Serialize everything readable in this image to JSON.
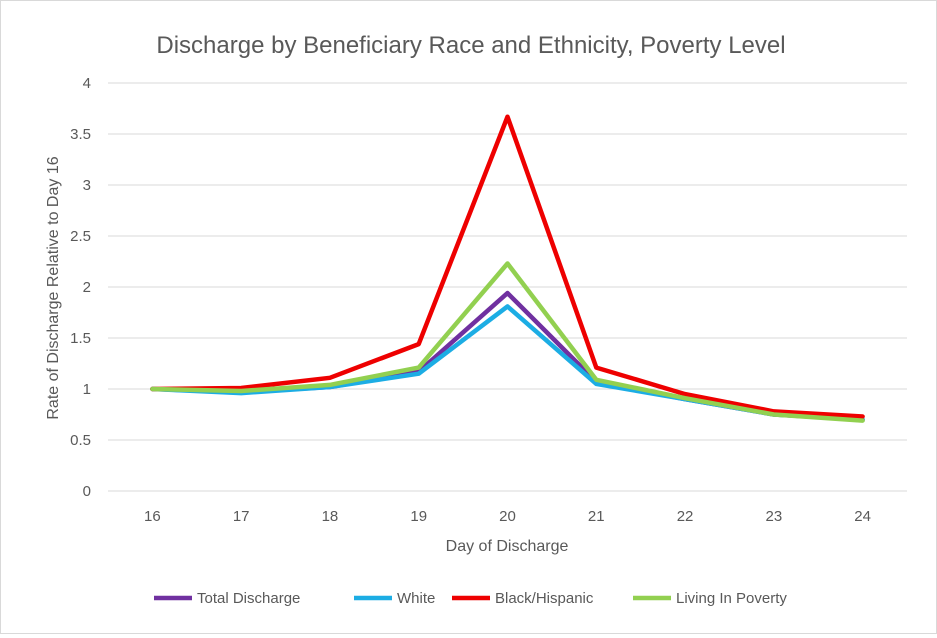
{
  "chart_data": {
    "type": "line",
    "title": "Discharge by Beneficiary Race and Ethnicity, Poverty Level",
    "xlabel": "Day of Discharge",
    "ylabel": "Rate of Discharge Relative to Day 16",
    "categories": [
      "16",
      "17",
      "18",
      "19",
      "20",
      "21",
      "22",
      "23",
      "24"
    ],
    "ylim": [
      0,
      4
    ],
    "yticks": [
      "0",
      "0.5",
      "1",
      "1.5",
      "2",
      "2.5",
      "3",
      "3.5",
      "4"
    ],
    "grid": true,
    "legend_position": "bottom",
    "series": [
      {
        "name": "Total Discharge",
        "color": "#7030a0",
        "values": [
          1.0,
          0.97,
          1.02,
          1.17,
          1.94,
          1.07,
          0.9,
          0.75,
          0.7
        ]
      },
      {
        "name": "White",
        "color": "#1cade4",
        "values": [
          1.0,
          0.96,
          1.02,
          1.15,
          1.81,
          1.05,
          0.9,
          0.75,
          0.7
        ]
      },
      {
        "name": "Black/Hispanic",
        "color": "#ee0000",
        "values": [
          1.0,
          1.01,
          1.11,
          1.44,
          3.67,
          1.21,
          0.95,
          0.78,
          0.73
        ]
      },
      {
        "name": "Living In Poverty",
        "color": "#92d050",
        "values": [
          1.0,
          0.98,
          1.04,
          1.21,
          2.23,
          1.09,
          0.91,
          0.75,
          0.69
        ]
      }
    ]
  }
}
